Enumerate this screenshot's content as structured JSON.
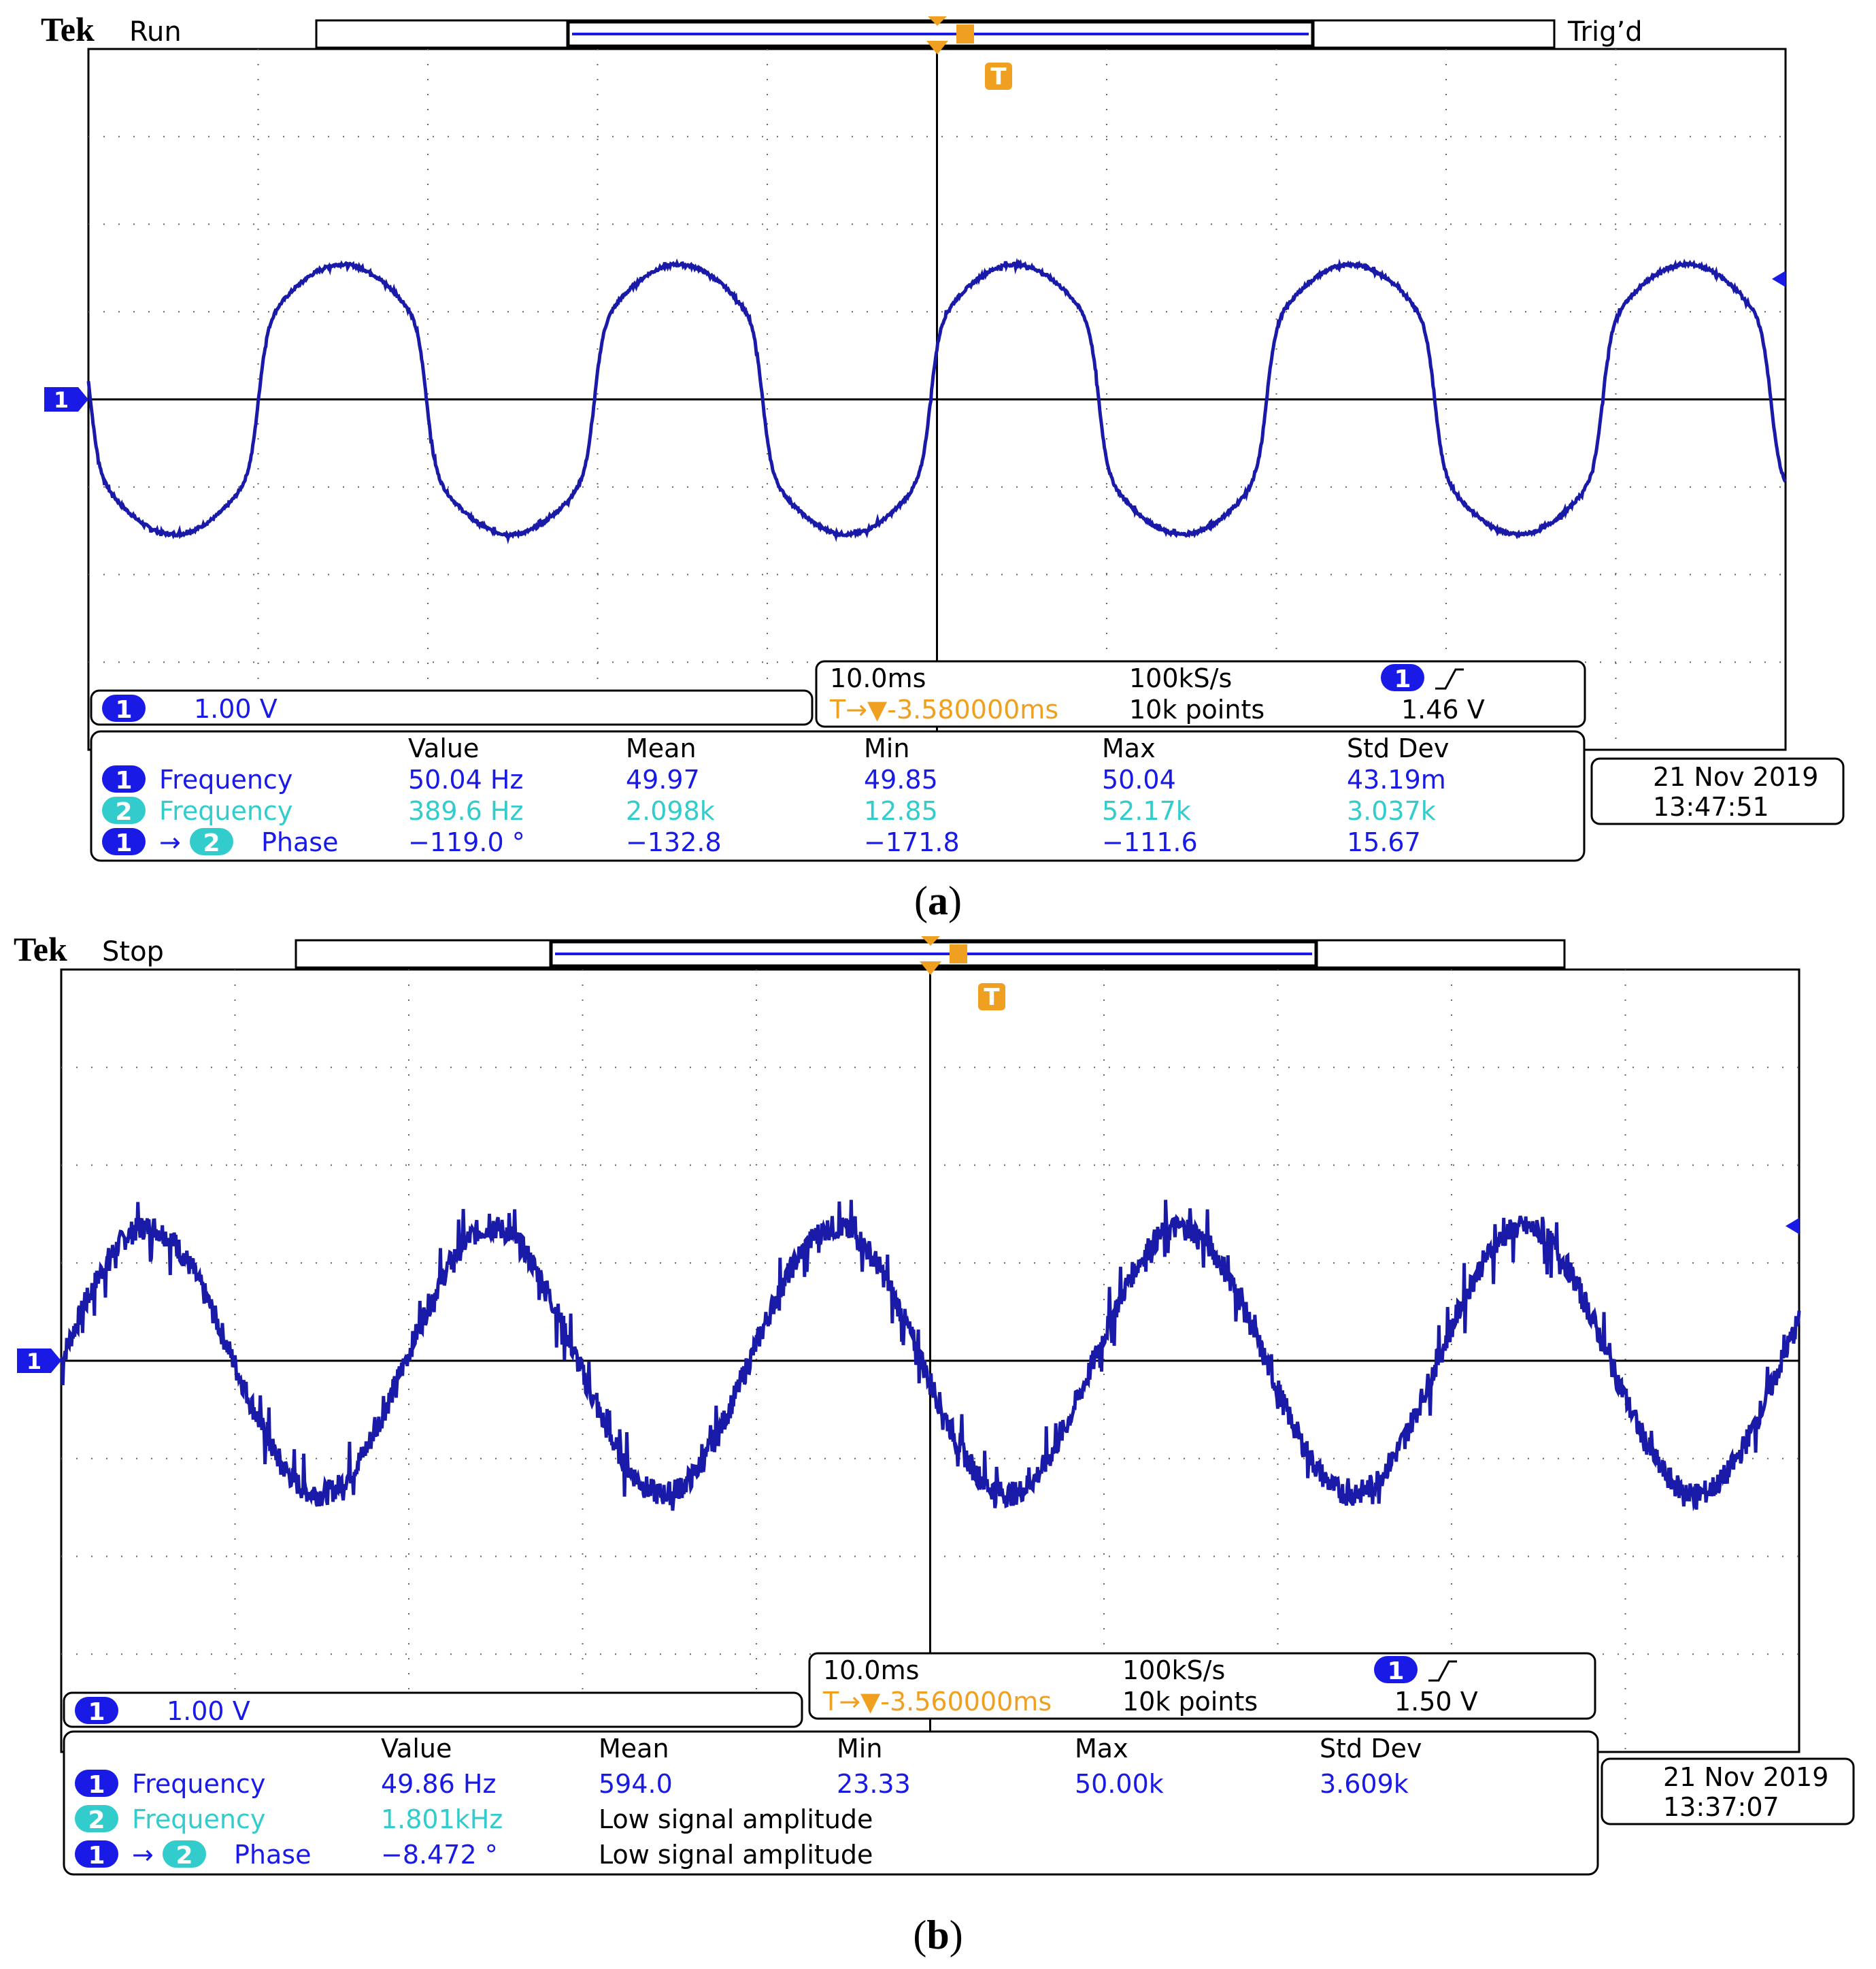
{
  "colors": {
    "trace": "#1a1aa8",
    "ch1": "#1a1ae6",
    "ch2": "#33cccc",
    "trigger": "#f0a020",
    "grid": "#000000",
    "frame": "#000000",
    "text": "#000000"
  },
  "icons": {
    "channel_1_marker": "channel-1-ground-marker",
    "trigger_T": "trigger-position-icon",
    "trigger_level": "trigger-level-arrow",
    "rising_edge": "rising-edge-icon"
  },
  "panels": [
    {
      "id": "a",
      "caption": "a",
      "brand": "Tek",
      "state": "Run",
      "trig_status": "Trig’d",
      "waveform_shape": "square-ish sine with flat steps",
      "noise_level": 0.02,
      "channel_scale": {
        "ch": "1",
        "label": "1.00 V"
      },
      "timebase": {
        "time_div": "10.0ms",
        "sample_rate": "100kS/s",
        "record": "10k points",
        "trig_ch": "1",
        "trig_level": "1.46 V",
        "delay": "T→▼-3.580000ms"
      },
      "date": "21 Nov  2019",
      "time": "13:47:51",
      "measurements": {
        "headers": [
          "Value",
          "Mean",
          "Min",
          "Max",
          "Std Dev"
        ],
        "rows": [
          {
            "src": "1",
            "src2": "",
            "label": "Frequency",
            "label_color": "ch1",
            "value": "50.04 Hz",
            "mean": "49.97",
            "min": "49.85",
            "max": "50.04",
            "std": "43.19m",
            "value_color": "ch1"
          },
          {
            "src": "2",
            "src2": "",
            "label": "Frequency",
            "label_color": "ch2",
            "value": "389.6 Hz",
            "mean": "2.098k",
            "min": "12.85",
            "max": "52.17k",
            "std": "3.037k",
            "value_color": "ch2"
          },
          {
            "src": "1",
            "src2": "2",
            "label": "Phase",
            "label_color": "ch1",
            "value": "−119.0 °",
            "mean": "−132.8",
            "min": "−171.8",
            "max": "−111.6",
            "std": "15.67",
            "value_color": "ch1"
          }
        ]
      }
    },
    {
      "id": "b",
      "caption": "b",
      "brand": "Tek",
      "state": "Stop",
      "trig_status": "",
      "waveform_shape": "noisy sine",
      "noise_level": 0.18,
      "channel_scale": {
        "ch": "1",
        "label": "1.00 V"
      },
      "timebase": {
        "time_div": "10.0ms",
        "sample_rate": "100kS/s",
        "record": "10k points",
        "trig_ch": "1",
        "trig_level": "1.50 V",
        "delay": "T→▼-3.560000ms"
      },
      "date": "21 Nov  2019",
      "time": "13:37:07",
      "measurements": {
        "headers": [
          "Value",
          "Mean",
          "Min",
          "Max",
          "Std Dev"
        ],
        "rows": [
          {
            "src": "1",
            "src2": "",
            "label": "Frequency",
            "label_color": "ch1",
            "value": "49.86 Hz",
            "mean": "594.0",
            "min": "23.33",
            "max": "50.00k",
            "std": "3.609k",
            "value_color": "ch1"
          },
          {
            "src": "2",
            "src2": "",
            "label": "Frequency",
            "label_color": "ch2",
            "value": "1.801kHz",
            "mean": "Low signal amplitude",
            "min": "",
            "max": "",
            "std": "",
            "value_color": "ch2"
          },
          {
            "src": "1",
            "src2": "2",
            "label": "Phase",
            "label_color": "ch1",
            "value": "−8.472 °",
            "mean": "Low signal amplitude",
            "min": "",
            "max": "",
            "std": "",
            "value_color": "ch1"
          }
        ]
      }
    }
  ]
}
